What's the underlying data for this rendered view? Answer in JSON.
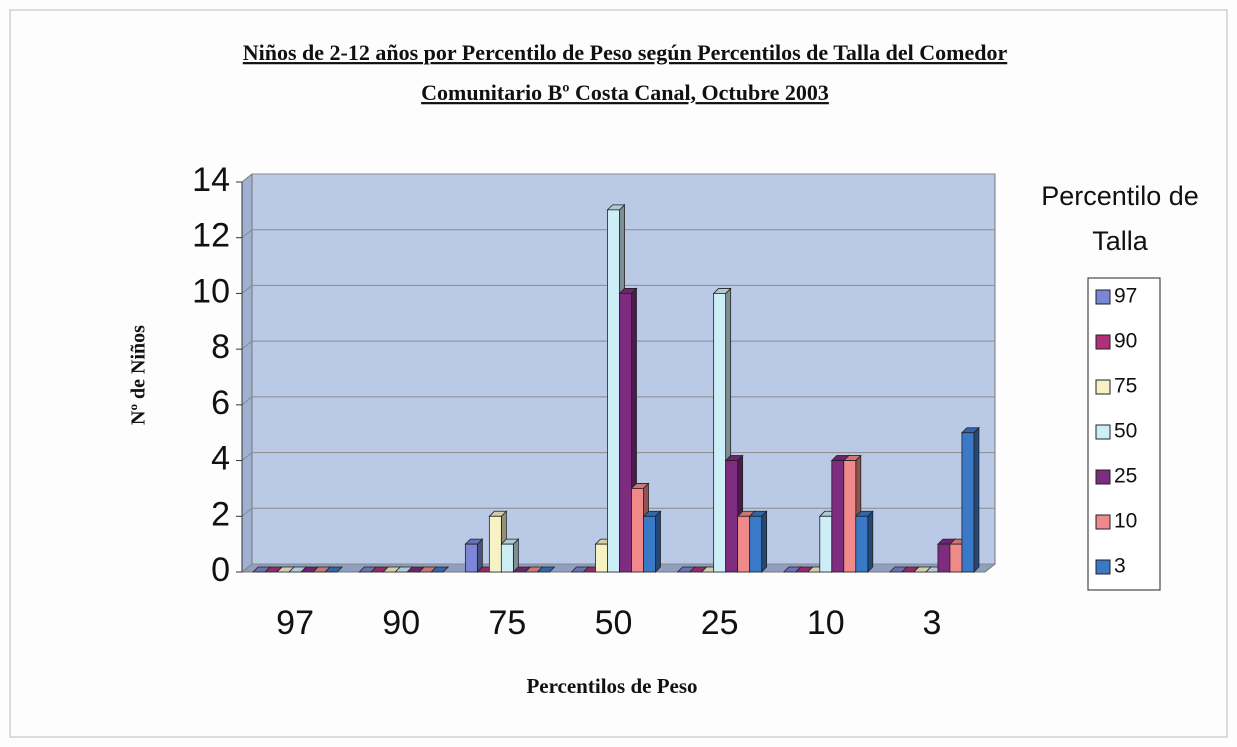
{
  "chart_data": {
    "type": "bar",
    "title": [
      "Niños de 2-12 años por Percentilo de Peso según Percentilos de Talla del Comedor",
      "Comunitario Bº Costa Canal, Octubre 2003"
    ],
    "x_label": "Percentilos de Peso",
    "y_label": "Nº de Niños",
    "legend_title": [
      "Percentilo de",
      "Talla"
    ],
    "categories": [
      "97",
      "90",
      "75",
      "50",
      "25",
      "10",
      "3"
    ],
    "series": [
      {
        "name": "97",
        "color": "#7b86d6",
        "values": [
          0,
          0,
          1,
          0,
          0,
          0,
          0
        ]
      },
      {
        "name": "90",
        "color": "#b0307a",
        "values": [
          0,
          0,
          0,
          0,
          0,
          0,
          0
        ]
      },
      {
        "name": "75",
        "color": "#f7f2c4",
        "values": [
          0,
          0,
          2,
          1,
          0,
          0,
          0
        ]
      },
      {
        "name": "50",
        "color": "#cdeef7",
        "values": [
          0,
          0,
          1,
          13,
          10,
          2,
          0
        ]
      },
      {
        "name": "25",
        "color": "#7e2c80",
        "values": [
          0,
          0,
          0,
          10,
          4,
          4,
          1
        ]
      },
      {
        "name": "10",
        "color": "#f08a8a",
        "values": [
          0,
          0,
          0,
          3,
          2,
          4,
          1
        ]
      },
      {
        "name": "3",
        "color": "#3a78c8",
        "values": [
          0,
          0,
          0,
          2,
          2,
          2,
          5
        ]
      }
    ],
    "ylim": [
      0,
      14
    ],
    "yticks": [
      0,
      2,
      4,
      6,
      8,
      10,
      12,
      14
    ],
    "grid": true,
    "legend": "right"
  }
}
